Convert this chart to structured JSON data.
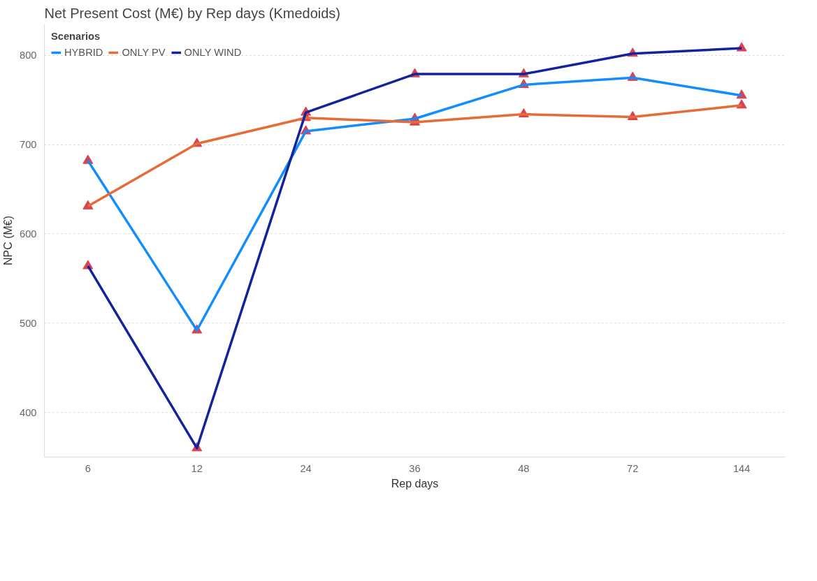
{
  "chart_data": {
    "type": "line",
    "title": "Net Present Cost (M€) by Rep days (Kmedoids)",
    "xlabel": "Rep days",
    "ylabel": "NPC (M€)",
    "legend_title": "Scenarios",
    "legend": "top left",
    "categories": [
      "6",
      "12",
      "24",
      "36",
      "48",
      "72",
      "144"
    ],
    "series": [
      {
        "name": "HYBRID",
        "color": "#118dff",
        "colors": [
          "#d9434f",
          "#d9434f",
          "#d9434f",
          "#d9434f",
          "#d9434f",
          "#d9434f",
          "#d9434f"
        ],
        "values": [
          682,
          492,
          715,
          729,
          767,
          775,
          755
        ]
      },
      {
        "name": "ONLY PV",
        "color": "#e66c37",
        "colors": [
          "#d9434f",
          "#d9434f",
          "#d9434f",
          "#d9434f",
          "#d9434f",
          "#d9434f",
          "#d9434f"
        ],
        "values": [
          631,
          701,
          730,
          725,
          734,
          731,
          744
        ]
      },
      {
        "name": "ONLY WIND",
        "color": "#12239e",
        "colors": [
          "#d9434f",
          "#d9434f",
          "#d9434f",
          "#d9434f",
          "#d9434f",
          "#d9434f",
          "#d9434f"
        ],
        "values": [
          564,
          360,
          736,
          779,
          779,
          802,
          808
        ]
      }
    ],
    "ylim": [
      350,
      835
    ],
    "yticks": [
      400,
      500,
      600,
      700,
      800
    ],
    "grid": "y",
    "marker": "triangle",
    "line_style": "solid"
  }
}
